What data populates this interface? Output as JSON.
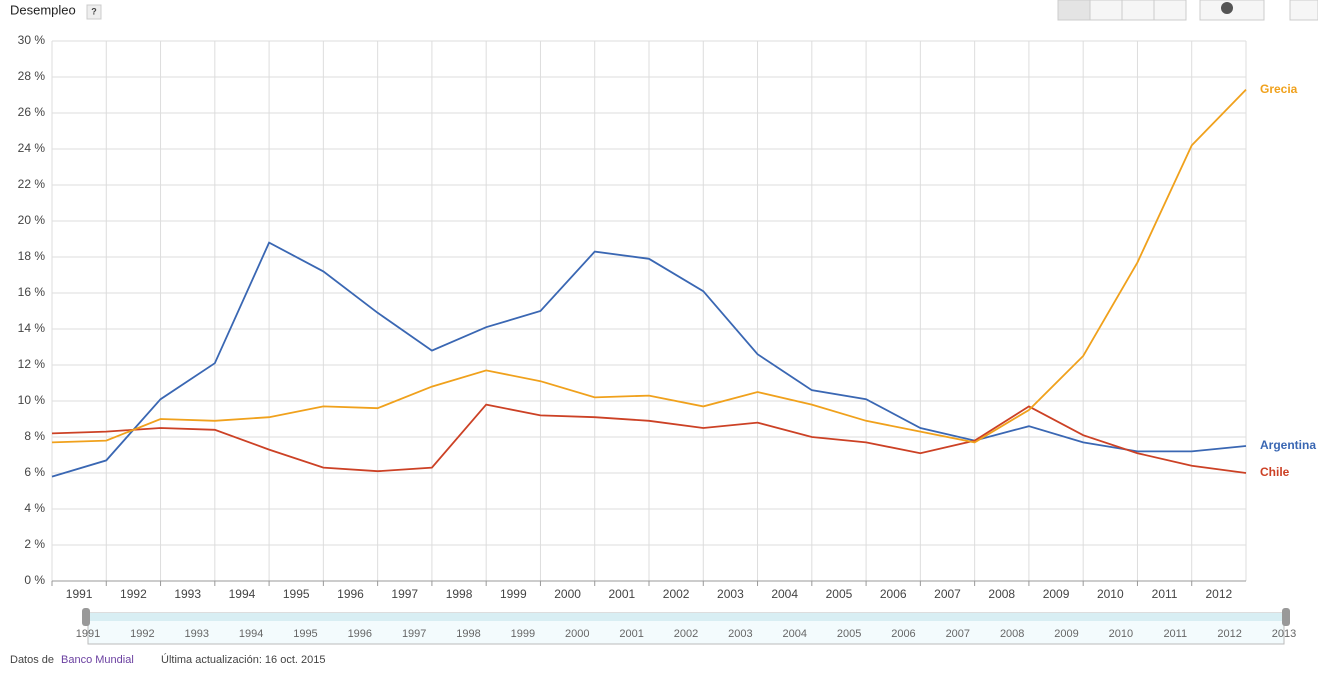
{
  "chart_data": {
    "type": "line",
    "title": "Desempleo",
    "help": "?",
    "x": [
      1991,
      1992,
      1993,
      1994,
      1995,
      1996,
      1997,
      1998,
      1999,
      2000,
      2001,
      2002,
      2003,
      2004,
      2005,
      2006,
      2007,
      2008,
      2009,
      2010,
      2011,
      2012,
      2013
    ],
    "xlim": [
      1991,
      2013
    ],
    "xticks": [
      1991,
      1992,
      1993,
      1994,
      1995,
      1996,
      1997,
      1998,
      1999,
      2000,
      2001,
      2002,
      2003,
      2004,
      2005,
      2006,
      2007,
      2008,
      2009,
      2010,
      2011,
      2012
    ],
    "ylim": [
      0,
      30
    ],
    "yticks": [
      {
        "value": 0,
        "label": "0 %"
      },
      {
        "value": 2,
        "label": "2 %"
      },
      {
        "value": 4,
        "label": "4 %"
      },
      {
        "value": 6,
        "label": "6 %"
      },
      {
        "value": 8,
        "label": "8 %"
      },
      {
        "value": 10,
        "label": "10 %"
      },
      {
        "value": 12,
        "label": "12 %"
      },
      {
        "value": 14,
        "label": "14 %"
      },
      {
        "value": 16,
        "label": "16 %"
      },
      {
        "value": 18,
        "label": "18 %"
      },
      {
        "value": 20,
        "label": "20 %"
      },
      {
        "value": 22,
        "label": "22 %"
      },
      {
        "value": 24,
        "label": "24 %"
      },
      {
        "value": 26,
        "label": "26 %"
      },
      {
        "value": 28,
        "label": "28 %"
      },
      {
        "value": 30,
        "label": "30 %"
      }
    ],
    "grid": true,
    "series": [
      {
        "name": "Argentina",
        "color": "#3a67b3",
        "values": [
          5.8,
          6.7,
          10.1,
          12.1,
          18.8,
          17.2,
          14.9,
          12.8,
          14.1,
          15.0,
          18.3,
          17.9,
          16.1,
          12.6,
          10.6,
          10.1,
          8.5,
          7.8,
          8.6,
          7.7,
          7.2,
          7.2,
          7.5
        ]
      },
      {
        "name": "Chile",
        "color": "#cc4125",
        "values": [
          8.2,
          8.3,
          8.5,
          8.4,
          7.3,
          6.3,
          6.1,
          6.3,
          9.8,
          9.2,
          9.1,
          8.9,
          8.5,
          8.8,
          8.0,
          7.7,
          7.1,
          7.8,
          9.7,
          8.1,
          7.1,
          6.4,
          6.0
        ]
      },
      {
        "name": "Grecia",
        "color": "#f0a11c",
        "values": [
          7.7,
          7.8,
          9.0,
          8.9,
          9.1,
          9.7,
          9.6,
          10.8,
          11.7,
          11.1,
          10.2,
          10.3,
          9.7,
          10.5,
          9.8,
          8.9,
          8.3,
          7.7,
          9.5,
          12.5,
          17.7,
          24.2,
          27.3
        ]
      }
    ]
  },
  "timeline": {
    "labels": [
      "1991",
      "1992",
      "1993",
      "1994",
      "1995",
      "1996",
      "1997",
      "1998",
      "1999",
      "2000",
      "2001",
      "2002",
      "2003",
      "2004",
      "2005",
      "2006",
      "2007",
      "2008",
      "2009",
      "2010",
      "2011",
      "2012",
      "2013"
    ]
  },
  "footer": {
    "source_prefix": "Datos de",
    "source": "Banco Mundial",
    "updated": "Última actualización: 16 oct. 2015"
  }
}
